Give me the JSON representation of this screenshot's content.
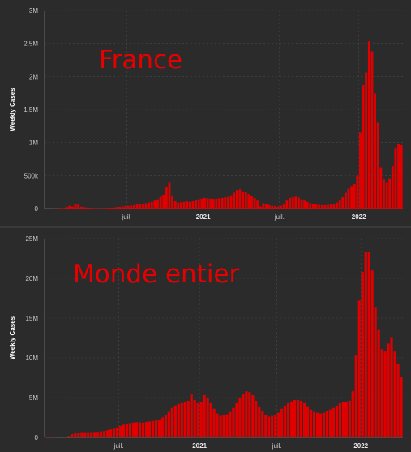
{
  "chart_data": [
    {
      "type": "bar",
      "overlay_title": "France",
      "ylabel": "Weekly Cases",
      "ylim": [
        0,
        3000000
      ],
      "y_ticks": [
        0,
        500000,
        1000000,
        1500000,
        2000000,
        2500000,
        3000000
      ],
      "y_tick_labels": [
        "0",
        "500k",
        "1M",
        "1,5M",
        "2M",
        "2,5M",
        "3M"
      ],
      "x_tick_labels": [
        {
          "label": "juil.",
          "index": 28,
          "bold": false
        },
        {
          "label": "2021",
          "index": 54,
          "bold": true
        },
        {
          "label": "juil.",
          "index": 80,
          "bold": false
        },
        {
          "label": "2022",
          "index": 107,
          "bold": true
        }
      ],
      "grid": true,
      "bar_color": "#e00000",
      "values": [
        0,
        0,
        1000,
        2000,
        3000,
        5000,
        8000,
        25000,
        40000,
        30000,
        70000,
        60000,
        25000,
        20000,
        15000,
        12000,
        8000,
        6000,
        5000,
        6000,
        8000,
        10000,
        12000,
        15000,
        20000,
        25000,
        30000,
        35000,
        40000,
        45000,
        50000,
        60000,
        65000,
        70000,
        80000,
        90000,
        100000,
        120000,
        140000,
        180000,
        210000,
        330000,
        400000,
        200000,
        110000,
        90000,
        95000,
        100000,
        110000,
        100000,
        110000,
        130000,
        140000,
        150000,
        160000,
        155000,
        150000,
        145000,
        150000,
        155000,
        160000,
        170000,
        175000,
        200000,
        240000,
        280000,
        290000,
        260000,
        250000,
        220000,
        190000,
        160000,
        120000,
        30000,
        80000,
        70000,
        50000,
        40000,
        35000,
        30000,
        40000,
        60000,
        120000,
        160000,
        170000,
        180000,
        165000,
        140000,
        120000,
        100000,
        80000,
        70000,
        60000,
        55000,
        50000,
        50000,
        55000,
        60000,
        70000,
        90000,
        120000,
        170000,
        240000,
        300000,
        340000,
        370000,
        500000,
        1150000,
        1870000,
        2060000,
        2530000,
        2380000,
        1740000,
        1310000,
        620000,
        440000,
        400000,
        460000,
        640000,
        920000,
        980000,
        960000
      ]
    },
    {
      "type": "bar",
      "overlay_title": "Monde entier",
      "ylabel": "Weekly Cases",
      "ylim": [
        0,
        25000000
      ],
      "y_ticks": [
        0,
        5000000,
        10000000,
        15000000,
        20000000,
        25000000
      ],
      "y_tick_labels": [
        "0",
        "5M",
        "10M",
        "15M",
        "20M",
        "25M"
      ],
      "x_tick_labels": [
        {
          "label": "juil.",
          "index": 23,
          "bold": false
        },
        {
          "label": "2021",
          "index": 48,
          "bold": true
        },
        {
          "label": "juil.",
          "index": 72,
          "bold": false
        },
        {
          "label": "2022",
          "index": 98,
          "bold": true
        }
      ],
      "grid": true,
      "bar_color": "#e00000",
      "values": [
        0,
        0,
        10000,
        20000,
        40000,
        60000,
        100000,
        200000,
        400000,
        550000,
        600000,
        650000,
        650000,
        650000,
        660000,
        680000,
        700000,
        750000,
        800000,
        900000,
        1000000,
        1100000,
        1250000,
        1450000,
        1600000,
        1750000,
        1800000,
        1850000,
        1900000,
        1900000,
        1850000,
        1950000,
        2000000,
        2050000,
        2150000,
        2200000,
        2500000,
        2800000,
        3200000,
        3700000,
        4000000,
        4200000,
        4300000,
        4400000,
        4600000,
        5400000,
        4700000,
        4300000,
        4400000,
        5300000,
        4900000,
        4300000,
        3600000,
        3000000,
        2700000,
        2800000,
        2900000,
        3200000,
        3700000,
        4300000,
        4900000,
        5500000,
        5800000,
        5700000,
        5300000,
        4600000,
        3900000,
        3300000,
        2800000,
        2600000,
        2700000,
        2800000,
        3100000,
        3600000,
        4000000,
        4300000,
        4500000,
        4700000,
        4700000,
        4600000,
        4300000,
        3900000,
        3500000,
        3200000,
        3100000,
        3000000,
        3100000,
        3300000,
        3500000,
        3700000,
        4000000,
        4300000,
        4400000,
        4400000,
        4600000,
        5800000,
        10300000,
        17200000,
        20800000,
        23300000,
        23300000,
        21000000,
        16400000,
        13500000,
        11100000,
        10800000,
        11800000,
        12600000,
        10800000,
        9300000,
        7600000
      ]
    }
  ]
}
